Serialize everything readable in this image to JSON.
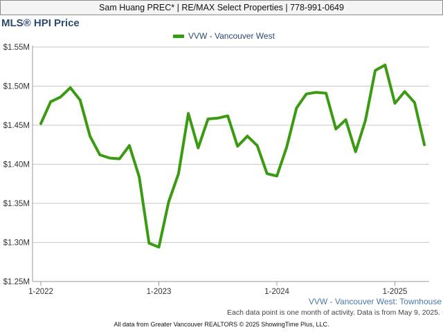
{
  "header": {
    "contact": "Sam Huang PREC* | RE/MAX Select Properties | 778-991-0649"
  },
  "colors": {
    "series": "#3a9a12",
    "grid": "#c8c8c8",
    "title": "#2a4a6e",
    "caption": "#4a78a8"
  },
  "chart_data": {
    "type": "line",
    "title": "MLS® HPI Price",
    "xlabel": "",
    "ylabel": "",
    "legend_position": "top-center",
    "grid": true,
    "x_ticks": [
      "1-2022",
      "1-2023",
      "1-2024",
      "1-2025"
    ],
    "y_ticks": [
      "$1.25M",
      "$1.30M",
      "$1.35M",
      "$1.40M",
      "$1.45M",
      "$1.50M",
      "$1.55M"
    ],
    "ylim": [
      1.25,
      1.55
    ],
    "x": [
      "2022-01",
      "2022-02",
      "2022-03",
      "2022-04",
      "2022-05",
      "2022-06",
      "2022-07",
      "2022-08",
      "2022-09",
      "2022-10",
      "2022-11",
      "2022-12",
      "2023-01",
      "2023-02",
      "2023-03",
      "2023-04",
      "2023-05",
      "2023-06",
      "2023-07",
      "2023-08",
      "2023-09",
      "2023-10",
      "2023-11",
      "2023-12",
      "2024-01",
      "2024-02",
      "2024-03",
      "2024-04",
      "2024-05",
      "2024-06",
      "2024-07",
      "2024-08",
      "2024-09",
      "2024-10",
      "2024-11",
      "2024-12",
      "2025-01",
      "2025-02",
      "2025-03",
      "2025-04"
    ],
    "series": [
      {
        "name": "VVW - Vancouver West",
        "values": [
          1.452,
          1.48,
          1.486,
          1.498,
          1.482,
          1.436,
          1.412,
          1.408,
          1.407,
          1.424,
          1.384,
          1.299,
          1.294,
          1.352,
          1.388,
          1.465,
          1.421,
          1.458,
          1.459,
          1.462,
          1.423,
          1.436,
          1.424,
          1.388,
          1.385,
          1.422,
          1.472,
          1.49,
          1.492,
          1.491,
          1.445,
          1.457,
          1.416,
          1.456,
          1.52,
          1.527,
          1.478,
          1.493,
          1.479,
          1.425
        ]
      }
    ]
  },
  "series_caption": "VVW - Vancouver West: Townhouse",
  "note": "Each data point is one month of activity. Data is from May 9, 2025.",
  "footer": "All data from Greater Vancouver REALTORS © 2025 ShowingTime Plus, LLC."
}
